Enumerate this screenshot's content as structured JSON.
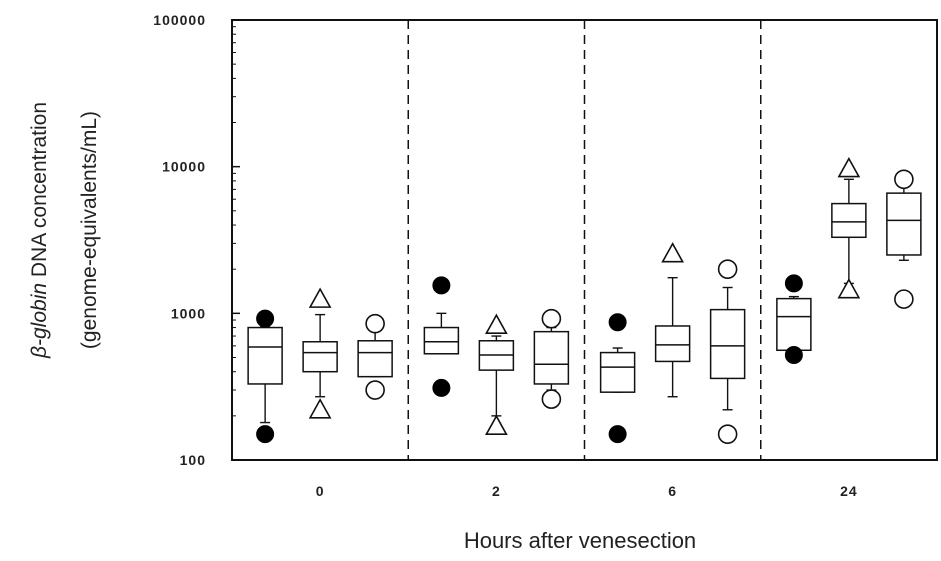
{
  "chart_data": {
    "type": "box",
    "scale": "log",
    "ylim": [
      100,
      100000
    ],
    "yticks": [
      100,
      1000,
      10000,
      100000
    ],
    "ytick_labels": [
      "100",
      "1000",
      "10000",
      "100000"
    ],
    "ylabel_line1_italic": "β-globin",
    "ylabel_line1_rest": " DNA concentration",
    "ylabel_line2": "(genome-equivalents/mL)",
    "xlabel": "Hours after venesection",
    "categories": [
      "0",
      "2",
      "6",
      "24"
    ],
    "marker_shapes": [
      "filled-circle",
      "open-triangle",
      "open-circle"
    ],
    "groups": [
      {
        "category": "0",
        "boxes": [
          {
            "marker": "filled-circle",
            "whisker_low": 180,
            "q1": 330,
            "median": 590,
            "q3": 800,
            "whisker_high": 810,
            "outliers": [
              920,
              150
            ]
          },
          {
            "marker": "open-triangle",
            "whisker_low": 270,
            "q1": 400,
            "median": 540,
            "q3": 640,
            "whisker_high": 980,
            "outliers": [
              1250,
              220
            ]
          },
          {
            "marker": "open-circle",
            "whisker_low": 370,
            "q1": 370,
            "median": 540,
            "q3": 650,
            "whisker_high": 760,
            "outliers": [
              850,
              300
            ]
          }
        ]
      },
      {
        "category": "2",
        "boxes": [
          {
            "marker": "filled-circle",
            "whisker_low": 530,
            "q1": 530,
            "median": 640,
            "q3": 800,
            "whisker_high": 1000,
            "outliers": [
              1550,
              310
            ]
          },
          {
            "marker": "open-triangle",
            "whisker_low": 200,
            "q1": 410,
            "median": 520,
            "q3": 650,
            "whisker_high": 700,
            "outliers": [
              830,
              170
            ]
          },
          {
            "marker": "open-circle",
            "whisker_low": 300,
            "q1": 330,
            "median": 450,
            "q3": 750,
            "whisker_high": 800,
            "outliers": [
              920,
              260
            ]
          }
        ]
      },
      {
        "category": "6",
        "boxes": [
          {
            "marker": "filled-circle",
            "whisker_low": 290,
            "q1": 290,
            "median": 430,
            "q3": 540,
            "whisker_high": 580,
            "outliers": [
              870,
              150
            ]
          },
          {
            "marker": "open-triangle",
            "whisker_low": 270,
            "q1": 470,
            "median": 610,
            "q3": 820,
            "whisker_high": 1750,
            "outliers": [
              2550
            ]
          },
          {
            "marker": "open-circle",
            "whisker_low": 220,
            "q1": 360,
            "median": 600,
            "q3": 1060,
            "whisker_high": 1500,
            "outliers": [
              2000,
              150
            ]
          }
        ]
      },
      {
        "category": "24",
        "boxes": [
          {
            "marker": "filled-circle",
            "whisker_low": 560,
            "q1": 560,
            "median": 950,
            "q3": 1260,
            "whisker_high": 1300,
            "outliers": [
              1600,
              520
            ]
          },
          {
            "marker": "open-triangle",
            "whisker_low": 1600,
            "q1": 3300,
            "median": 4200,
            "q3": 5600,
            "whisker_high": 8200,
            "outliers": [
              9700,
              1450
            ]
          },
          {
            "marker": "open-circle",
            "whisker_low": 2300,
            "q1": 2500,
            "median": 4300,
            "q3": 6600,
            "whisker_high": 7300,
            "outliers": [
              8200,
              1250
            ]
          }
        ]
      }
    ]
  }
}
